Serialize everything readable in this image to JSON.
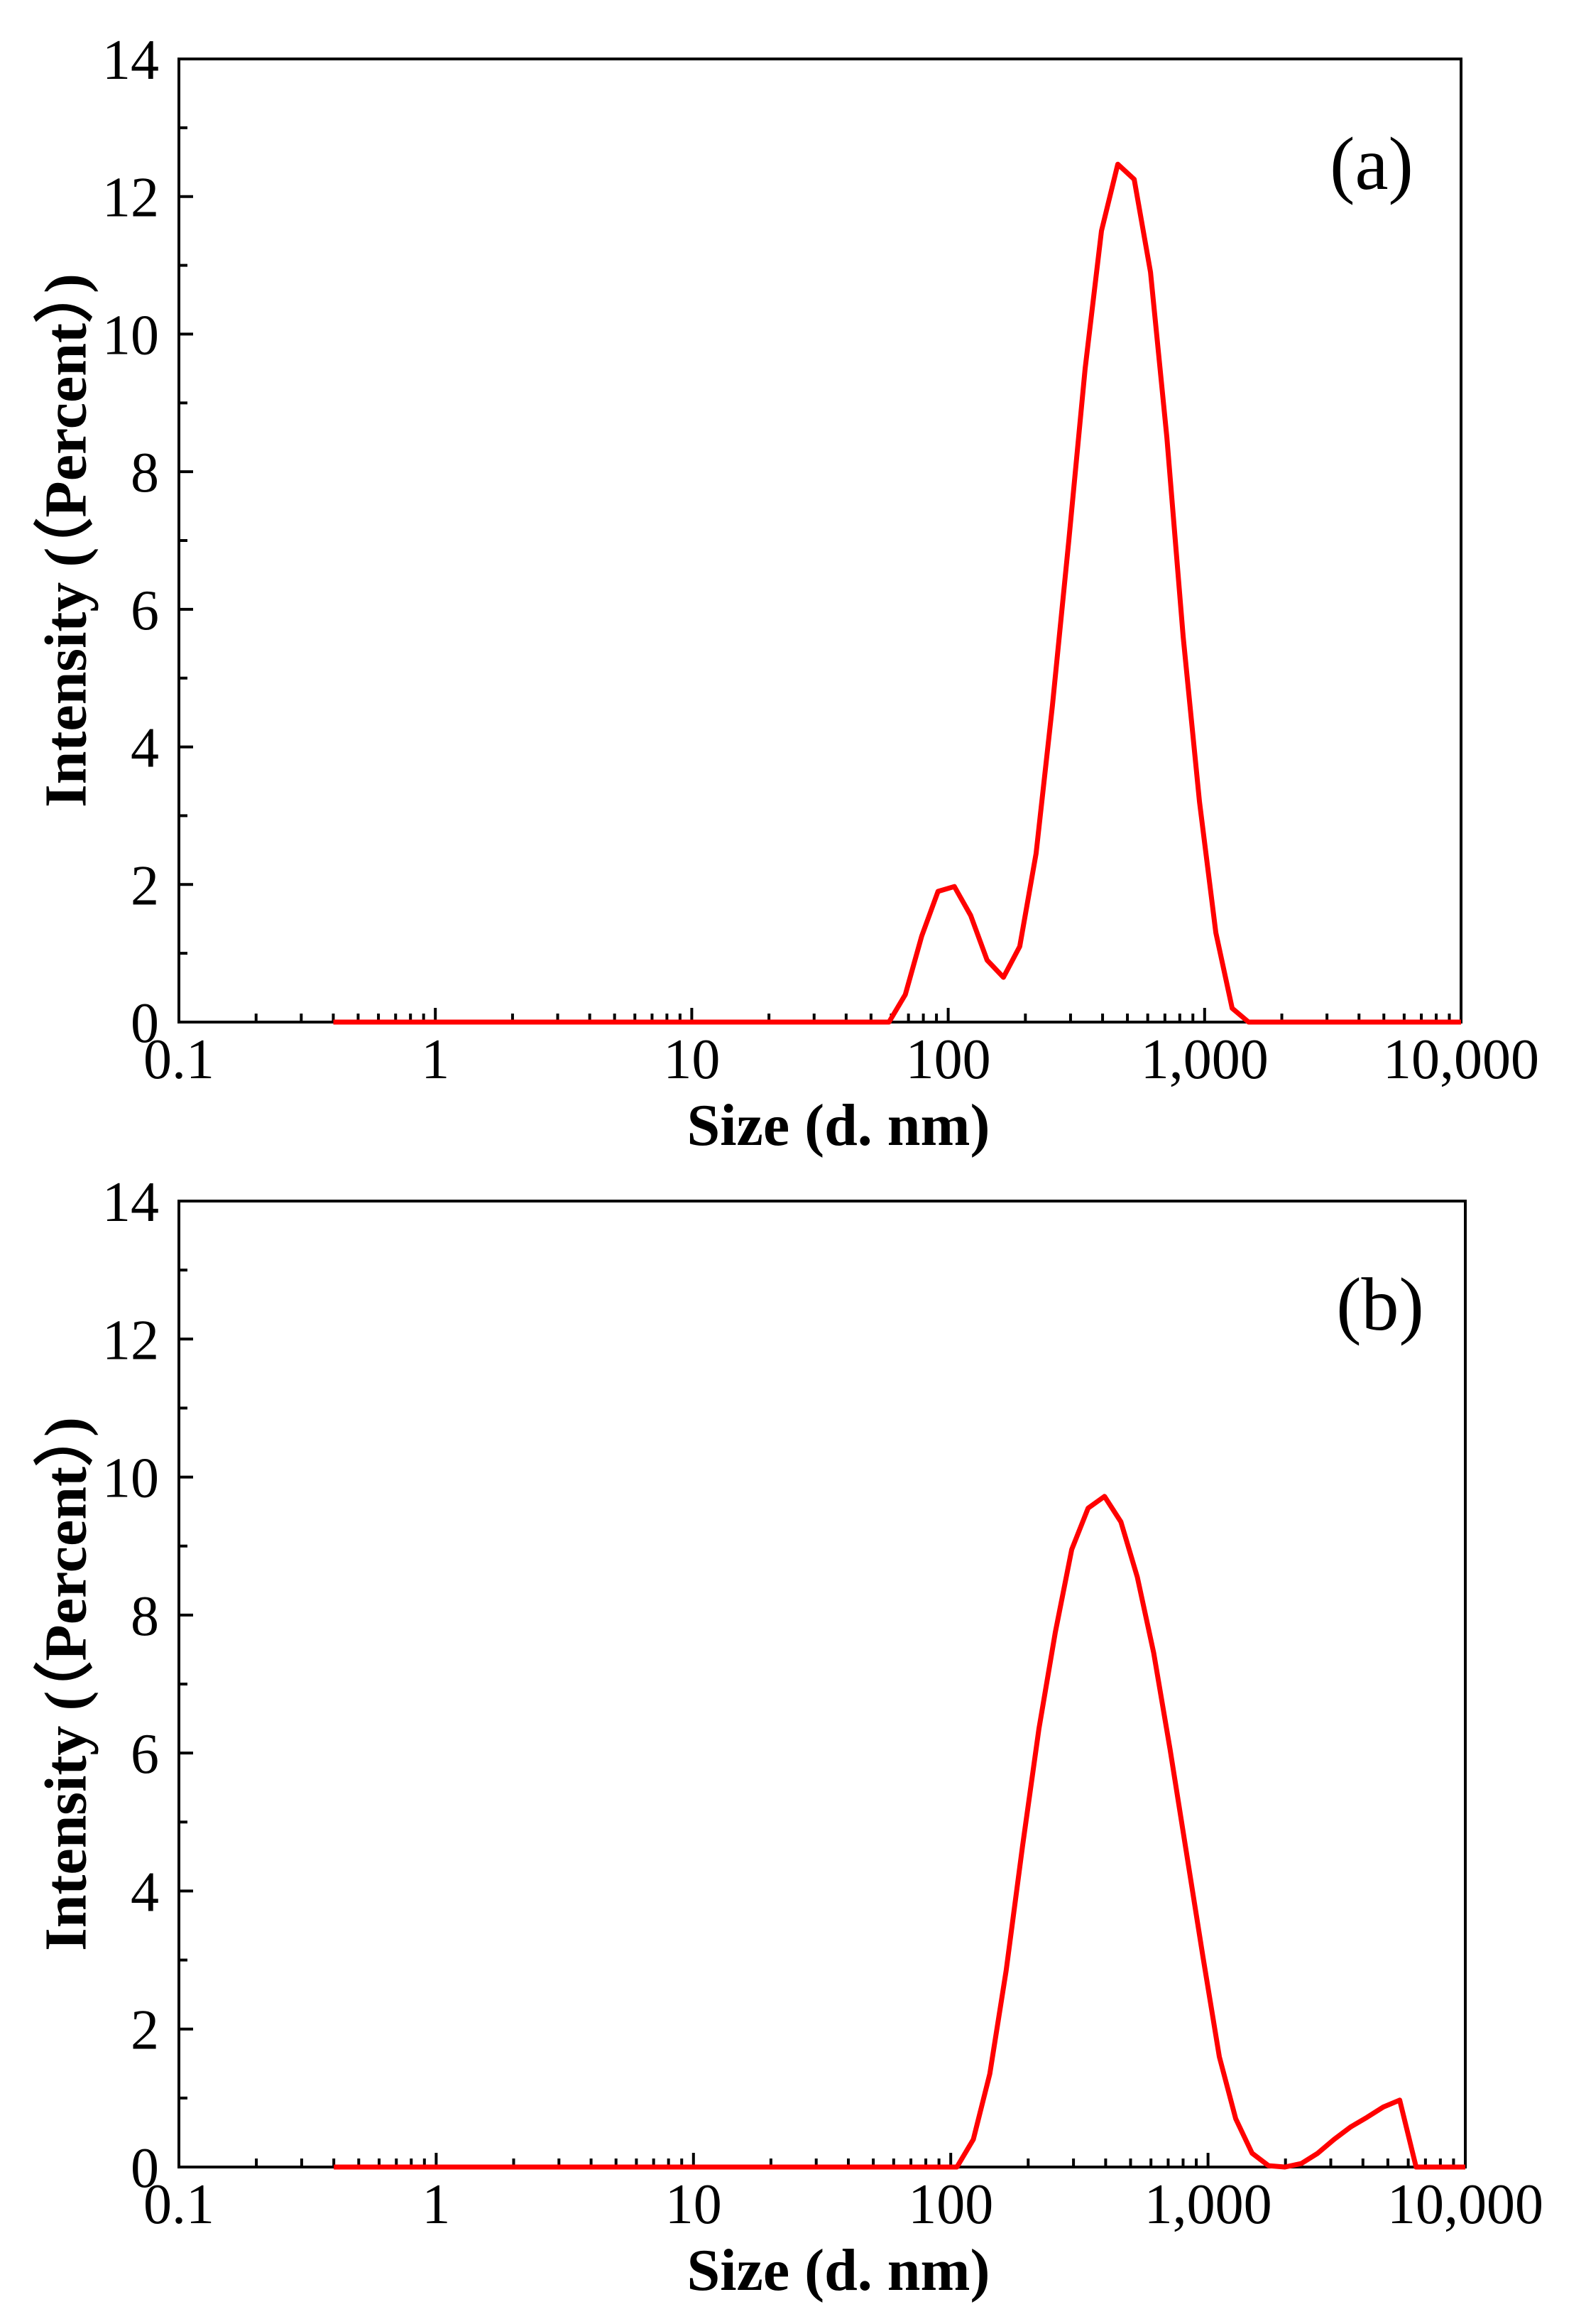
{
  "figure": {
    "background": "#ffffff",
    "axis_color": "#000000"
  },
  "chart_data": [
    {
      "type": "line",
      "panel_label": "(a)",
      "xlabel": "Size (d. nm)",
      "ylabel": "Intensity (（Percent）)",
      "x_log_scale": true,
      "xlim": [
        0.1,
        10000
      ],
      "ylim": [
        0,
        14
      ],
      "xticks": [
        0.1,
        1,
        10,
        100,
        1000,
        10000
      ],
      "xtick_labels": [
        "0.1",
        "1",
        "10",
        "100",
        "1,000",
        "10,000"
      ],
      "yticks": [
        0,
        2,
        4,
        6,
        8,
        10,
        12,
        14
      ],
      "ytick_labels": [
        "0",
        "2",
        "4",
        "6",
        "8",
        "10",
        "12",
        "14"
      ],
      "grid": false,
      "line_color": "#ff0000",
      "series": [
        {
          "x": [
            0.4,
            58.77,
            68.06,
            78.82,
            91.28,
            105.7,
            122.4,
            141.8,
            164.2,
            190.1,
            220.2,
            255.0,
            295.3,
            342.0,
            396.1,
            458.7,
            531.2,
            615.1,
            712.4,
            825.0,
            955.4,
            1106,
            1281,
            1484,
            10000
          ],
          "y": [
            0,
            0,
            0.4,
            1.25,
            1.9,
            1.97,
            1.55,
            0.9,
            0.65,
            1.1,
            2.45,
            4.6,
            7.0,
            9.5,
            11.5,
            12.47,
            12.25,
            10.9,
            8.5,
            5.6,
            3.2,
            1.3,
            0.2,
            0,
            0
          ]
        }
      ]
    },
    {
      "type": "line",
      "panel_label": "(b)",
      "xlabel": "Size (d. nm)",
      "ylabel": "Intensity (（Percent）)",
      "x_log_scale": true,
      "xlim": [
        0.1,
        10000
      ],
      "ylim": [
        0,
        14
      ],
      "xticks": [
        0.1,
        1,
        10,
        100,
        1000,
        10000
      ],
      "xtick_labels": [
        "0.1",
        "1",
        "10",
        "100",
        "1,000",
        "10,000"
      ],
      "yticks": [
        0,
        2,
        4,
        6,
        8,
        10,
        12,
        14
      ],
      "ytick_labels": [
        "0",
        "2",
        "4",
        "6",
        "8",
        "10",
        "12",
        "14"
      ],
      "grid": false,
      "line_color": "#ff0000",
      "series": [
        {
          "x": [
            0.4,
            105.7,
            122.4,
            141.8,
            164.2,
            190.1,
            220.2,
            255.0,
            295.3,
            342.0,
            396.1,
            458.7,
            531.2,
            615.1,
            712.4,
            825.0,
            955.4,
            1106,
            1281,
            1484,
            1718,
            1990,
            2305,
            2669,
            3091,
            3580,
            4145,
            4801,
            5560,
            6439,
            10000
          ],
          "y": [
            0,
            0,
            0.4,
            1.35,
            2.85,
            4.65,
            6.35,
            7.75,
            8.95,
            9.55,
            9.72,
            9.35,
            8.55,
            7.45,
            6.05,
            4.55,
            3.05,
            1.6,
            0.7,
            0.2,
            0.02,
            0,
            0.05,
            0.2,
            0.4,
            0.58,
            0.72,
            0.87,
            0.97,
            0,
            0
          ]
        }
      ]
    }
  ]
}
